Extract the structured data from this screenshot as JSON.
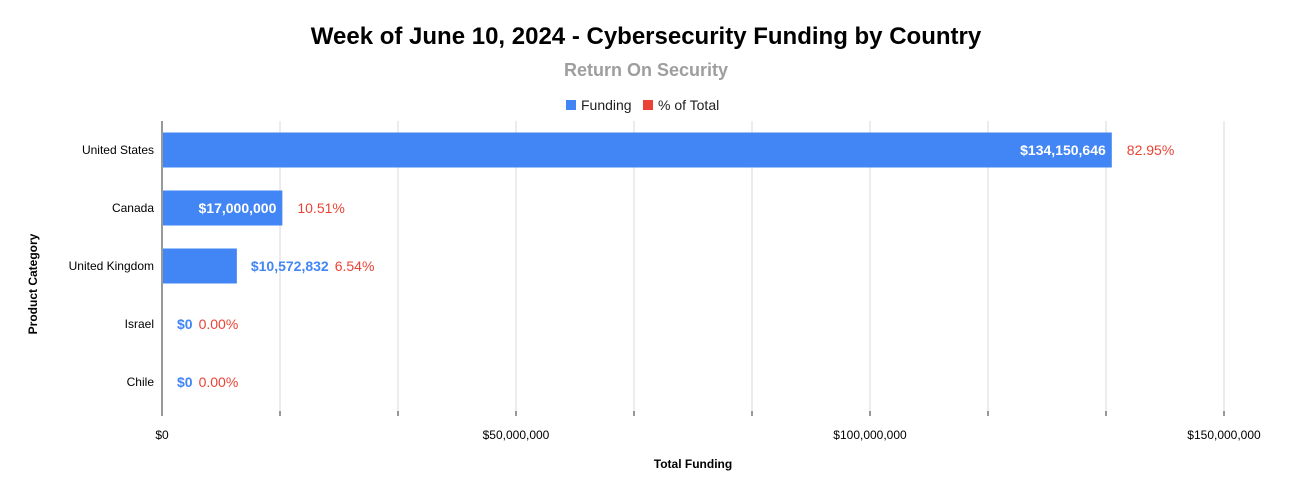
{
  "chart_data": {
    "type": "bar",
    "orientation": "horizontal",
    "title": "Week of June 10, 2024 - Cybersecurity Funding by Country",
    "subtitle": "Return On Security",
    "xlabel": "Total Funding",
    "ylabel": "Product Category",
    "categories": [
      "United States",
      "Canada",
      "United Kingdom",
      "Israel",
      "Chile"
    ],
    "series": [
      {
        "name": "Funding",
        "values": [
          134150646,
          17000000,
          10572832,
          0,
          0
        ],
        "labels": [
          "$134,150,646",
          "$17,000,000",
          "$10,572,832",
          "$0",
          "$0"
        ],
        "color": "#4285f4"
      },
      {
        "name": "% of Total",
        "values": [
          82.95,
          10.51,
          6.54,
          0,
          0
        ],
        "labels": [
          "82.95%",
          "10.51%",
          "6.54%",
          "0.00%",
          "0.00%"
        ],
        "color": "#ea4335"
      }
    ],
    "xlim": [
      0,
      150000000
    ],
    "x_ticks": [
      0,
      50000000,
      100000000,
      150000000
    ],
    "x_tick_labels": [
      "$0",
      "$50,000,000",
      "$100,000,000",
      "$150,000,000"
    ],
    "grid": true,
    "legend_position": "top"
  }
}
